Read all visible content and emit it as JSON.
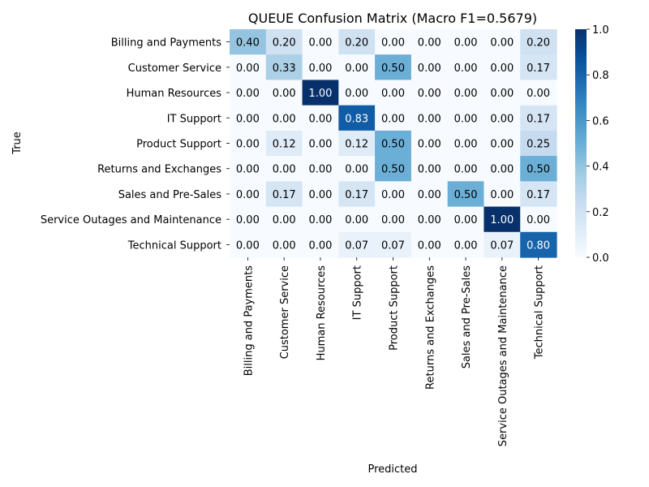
{
  "chart_data": {
    "type": "heatmap",
    "title": "QUEUE Confusion Matrix (Macro F1=0.5679)",
    "xlabel": "Predicted",
    "ylabel": "True",
    "x_categories": [
      "Billing and Payments",
      "Customer Service",
      "Human Resources",
      "IT Support",
      "Product Support",
      "Returns and Exchanges",
      "Sales and Pre-Sales",
      "Service Outages and Maintenance",
      "Technical Support"
    ],
    "y_categories": [
      "Billing and Payments",
      "Customer Service",
      "Human Resources",
      "IT Support",
      "Product Support",
      "Returns and Exchanges",
      "Sales and Pre-Sales",
      "Service Outages and Maintenance",
      "Technical Support"
    ],
    "values": [
      [
        0.4,
        0.2,
        0.0,
        0.2,
        0.0,
        0.0,
        0.0,
        0.0,
        0.2
      ],
      [
        0.0,
        0.33,
        0.0,
        0.0,
        0.5,
        0.0,
        0.0,
        0.0,
        0.17
      ],
      [
        0.0,
        0.0,
        1.0,
        0.0,
        0.0,
        0.0,
        0.0,
        0.0,
        0.0
      ],
      [
        0.0,
        0.0,
        0.0,
        0.83,
        0.0,
        0.0,
        0.0,
        0.0,
        0.17
      ],
      [
        0.0,
        0.12,
        0.0,
        0.12,
        0.5,
        0.0,
        0.0,
        0.0,
        0.25
      ],
      [
        0.0,
        0.0,
        0.0,
        0.0,
        0.5,
        0.0,
        0.0,
        0.0,
        0.5
      ],
      [
        0.0,
        0.17,
        0.0,
        0.17,
        0.0,
        0.0,
        0.5,
        0.0,
        0.17
      ],
      [
        0.0,
        0.0,
        0.0,
        0.0,
        0.0,
        0.0,
        0.0,
        1.0,
        0.0
      ],
      [
        0.0,
        0.0,
        0.0,
        0.07,
        0.07,
        0.0,
        0.0,
        0.07,
        0.8
      ]
    ],
    "value_format": "2 decimals",
    "colormap": "Blues",
    "colorbar": {
      "range": [
        0,
        1
      ],
      "ticks": [
        "0.0",
        "0.2",
        "0.4",
        "0.6",
        "0.8",
        "1.0"
      ]
    },
    "grid": false
  }
}
